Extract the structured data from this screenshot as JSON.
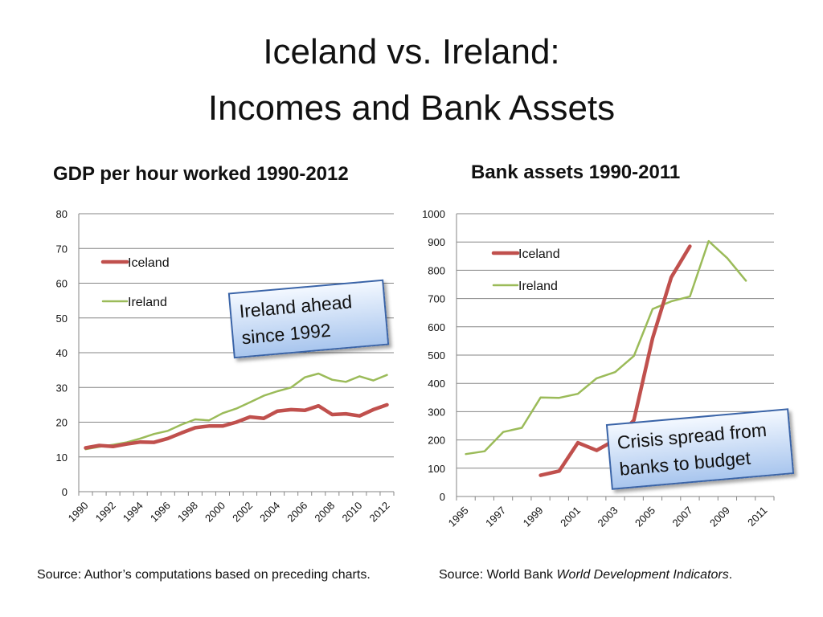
{
  "slide": {
    "title_line1": "Iceland vs. Ireland:",
    "title_line2": "Incomes and Bank Assets"
  },
  "callouts": {
    "left": [
      "Ireland ahead",
      "since 1992"
    ],
    "right": [
      "Crisis spread from",
      "banks to budget"
    ]
  },
  "sources": {
    "left": "Source: Author’s computations based on preceding charts.",
    "right_prefix": "Source: World Bank ",
    "right_italic": "World Development Indicators",
    "right_suffix": "."
  },
  "colors": {
    "iceland": "#c0504d",
    "ireland": "#9bbb59",
    "grid": "#868686",
    "callout_border": "#3a64a8"
  },
  "chart_data": [
    {
      "type": "line",
      "title": "GDP per hour worked 1990-2012",
      "x": [
        1990,
        1991,
        1992,
        1993,
        1994,
        1995,
        1996,
        1997,
        1998,
        1999,
        2000,
        2001,
        2002,
        2003,
        2004,
        2005,
        2006,
        2007,
        2008,
        2009,
        2010,
        2011,
        2012
      ],
      "x_tick_labels": [
        "1990",
        "1992",
        "1994",
        "1996",
        "1998",
        "2000",
        "2002",
        "2004",
        "2006",
        "2008",
        "2010",
        "2012"
      ],
      "ylim": [
        0,
        80
      ],
      "y_ticks": [
        0,
        10,
        20,
        30,
        40,
        50,
        60,
        70,
        80
      ],
      "grid": true,
      "legend_position": "top-left",
      "series": [
        {
          "name": "Iceland",
          "color": "#c0504d",
          "values": [
            12.6,
            13.3,
            13.0,
            13.7,
            14.3,
            14.2,
            15.3,
            16.9,
            18.4,
            18.9,
            18.9,
            20.0,
            21.5,
            21.1,
            23.2,
            23.6,
            23.4,
            24.7,
            22.2,
            22.4,
            21.8,
            23.6,
            25.0
          ]
        },
        {
          "name": "Ireland",
          "color": "#9bbb59",
          "values": [
            12.2,
            12.9,
            13.5,
            14.2,
            15.3,
            16.6,
            17.5,
            19.3,
            20.8,
            20.5,
            22.6,
            23.9,
            25.7,
            27.6,
            28.9,
            30.0,
            32.9,
            34.0,
            32.2,
            31.6,
            33.2,
            32.0,
            33.6
          ]
        }
      ]
    },
    {
      "type": "line",
      "title": "Bank assets 1990-2011",
      "x": [
        1995,
        1996,
        1997,
        1998,
        1999,
        2000,
        2001,
        2002,
        2003,
        2004,
        2005,
        2006,
        2007,
        2008,
        2009,
        2010,
        2011
      ],
      "x_tick_labels": [
        "1995",
        "1997",
        "1999",
        "2001",
        "2003",
        "2005",
        "2007",
        "2009",
        "2011"
      ],
      "ylim": [
        0,
        1000
      ],
      "y_ticks": [
        0,
        100,
        200,
        300,
        400,
        500,
        600,
        700,
        800,
        900,
        1000
      ],
      "grid": true,
      "legend_position": "top-left",
      "series": [
        {
          "name": "Iceland",
          "color": "#c0504d",
          "values": [
            null,
            null,
            null,
            null,
            75,
            90,
            190,
            163,
            200,
            270,
            560,
            775,
            885,
            null,
            null,
            null,
            null
          ]
        },
        {
          "name": "Ireland",
          "color": "#9bbb59",
          "values": [
            150,
            160,
            228,
            243,
            350,
            349,
            363,
            418,
            440,
            497,
            663,
            690,
            707,
            903,
            843,
            763,
            null
          ]
        }
      ]
    }
  ]
}
